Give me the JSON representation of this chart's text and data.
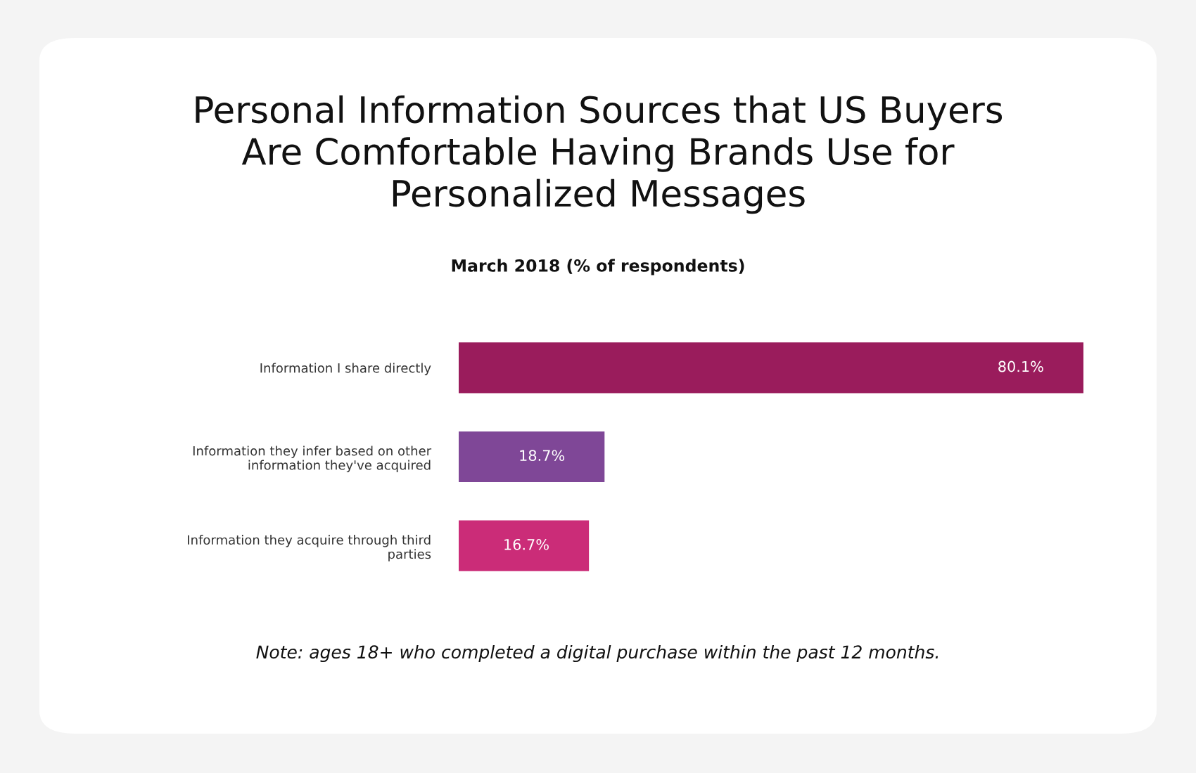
{
  "chart_data": {
    "type": "bar",
    "orientation": "horizontal",
    "title": "Personal Information Sources that US Buyers\nAre Comfortable Having Brands Use for\nPersonalized Messages",
    "subtitle": "March 2018 (% of respondents)",
    "categories": [
      "Information I share directly",
      "Information they infer based on other\ninformation they've acquired",
      "Information they acquire through third\nparties"
    ],
    "values": [
      80.1,
      18.7,
      16.7
    ],
    "colors": [
      "#9a1c5c",
      "#7f4797",
      "#cb2c78"
    ],
    "value_labels": [
      "80.1%",
      "18.7%",
      "16.7%"
    ],
    "annotations": [
      "Note: ages 18+ who completed a digital purchase within the past 12 months."
    ],
    "grid": false,
    "legend": false
  }
}
